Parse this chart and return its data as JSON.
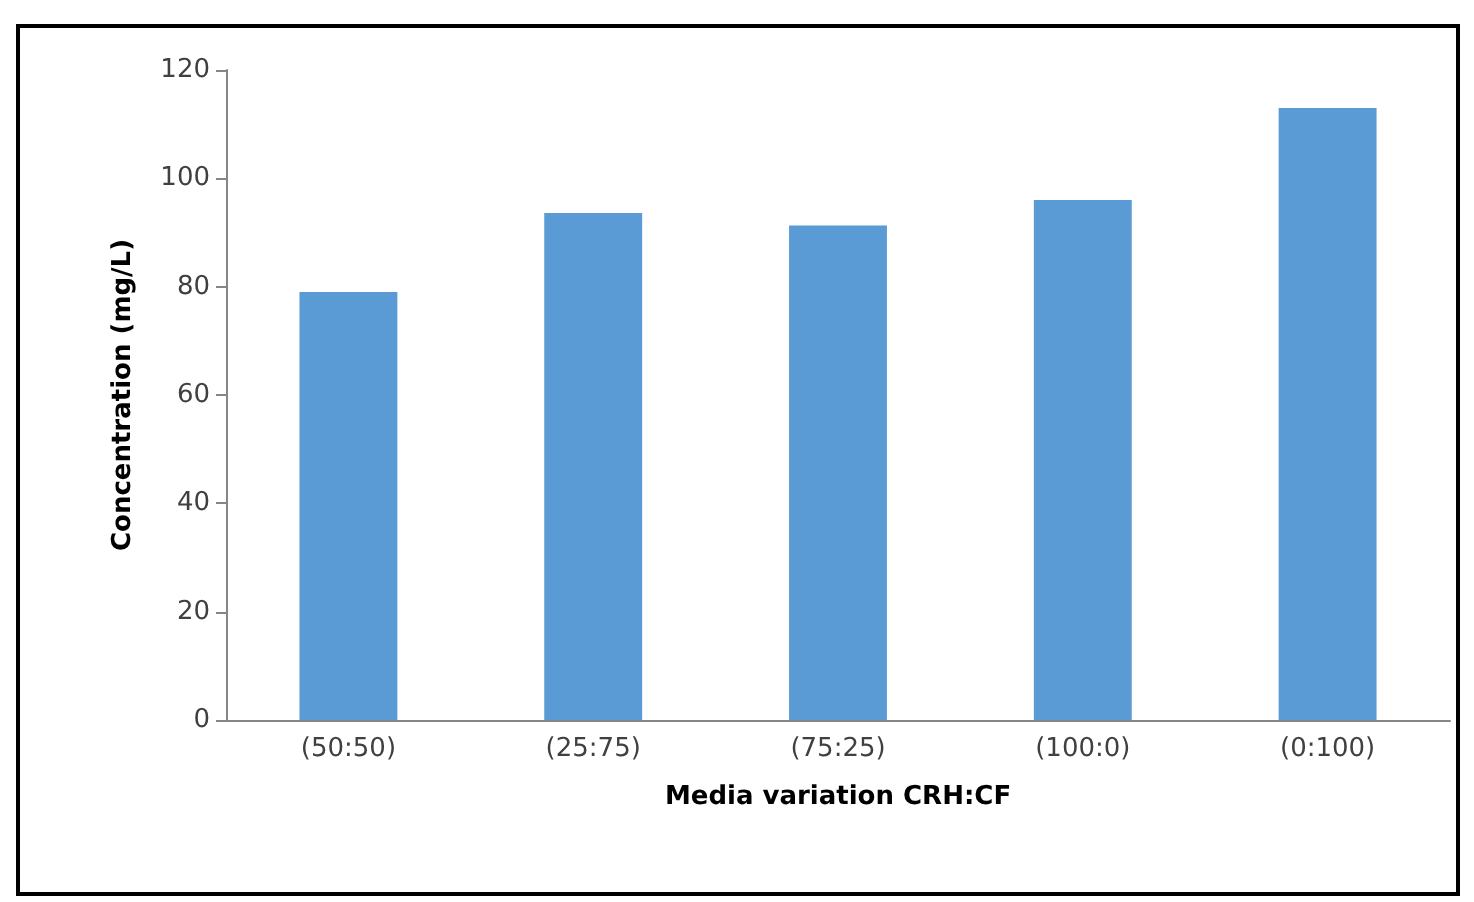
{
  "chart_data": {
    "type": "bar",
    "xlabel": "Media variation CRH:CF",
    "ylabel": "Concentration (mg/L)",
    "categories": [
      "(50:50)",
      "(25:75)",
      "(75:25)",
      "(100:0)",
      "(0:100)"
    ],
    "values": [
      79,
      93.6,
      91.3,
      96,
      113
    ],
    "color": "#5b9bd5",
    "ylim": [
      0,
      120
    ],
    "yticks": [
      0,
      20,
      40,
      60,
      80,
      100,
      120
    ],
    "grid": false
  }
}
